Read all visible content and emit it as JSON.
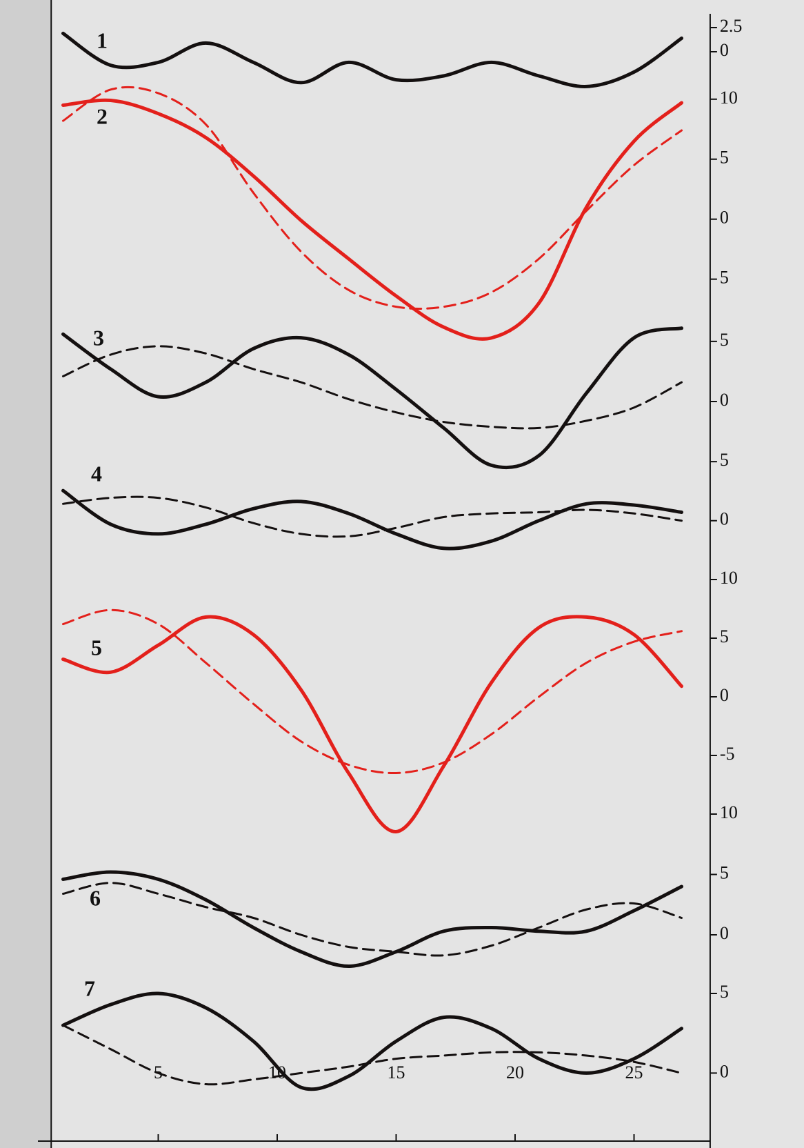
{
  "chart_data": [
    {
      "type": "line",
      "label": "1",
      "xlim": [
        0.5,
        28.2
      ],
      "ylim": [
        -4,
        3.5
      ],
      "yticks": [
        2.5,
        0
      ],
      "x": [
        1,
        3,
        5,
        7,
        9,
        11,
        13,
        15,
        17,
        19,
        21,
        23,
        25,
        27
      ],
      "series": [
        {
          "color": "#141010",
          "dashed": false,
          "values": [
            1.9,
            -1.4,
            -1.1,
            0.9,
            -1.1,
            -3.2,
            -1.1,
            -2.9,
            -2.5,
            -1.1,
            -2.5,
            -3.6,
            -2.1,
            1.4
          ]
        }
      ]
    },
    {
      "type": "line",
      "label": "2",
      "xlim": [
        0.5,
        28.2
      ],
      "ylim": [
        -11,
        12
      ],
      "yticks": [
        10,
        5,
        0,
        {
          "value": -5,
          "label": "5"
        }
      ],
      "x": [
        1,
        3,
        5,
        7,
        9,
        11,
        13,
        15,
        17,
        19,
        21,
        23,
        25,
        27
      ],
      "series": [
        {
          "color": "#e3201b",
          "dashed": false,
          "values": [
            9.5,
            9.9,
            8.8,
            6.8,
            3.6,
            -0.1,
            -3.3,
            -6.4,
            -9.0,
            -9.9,
            -7.0,
            1.0,
            6.5,
            9.7
          ]
        },
        {
          "color": "#e3201b",
          "dashed": true,
          "values": [
            8.2,
            10.8,
            10.5,
            7.9,
            2.2,
            -2.7,
            -5.9,
            -7.3,
            -7.3,
            -6.1,
            -3.3,
            0.7,
            4.5,
            7.4
          ]
        }
      ]
    },
    {
      "type": "line",
      "label": "3",
      "xlim": [
        0.5,
        28.2
      ],
      "ylim": [
        -7,
        7
      ],
      "yticks": [
        5,
        0,
        {
          "value": -5,
          "label": "5"
        }
      ],
      "x": [
        1,
        3,
        5,
        7,
        9,
        11,
        13,
        15,
        17,
        19,
        21,
        23,
        25,
        27
      ],
      "series": [
        {
          "color": "#141010",
          "dashed": false,
          "values": [
            5.6,
            2.7,
            0.4,
            1.6,
            4.4,
            5.3,
            3.9,
            1.0,
            -2.2,
            -5.3,
            -4.5,
            0.7,
            5.3,
            6.1
          ]
        },
        {
          "color": "#141010",
          "dashed": true,
          "values": [
            2.1,
            3.9,
            4.6,
            4.0,
            2.7,
            1.6,
            0.2,
            -0.9,
            -1.7,
            -2.1,
            -2.2,
            -1.6,
            -0.5,
            1.6
          ]
        }
      ]
    },
    {
      "type": "line",
      "label": "4",
      "xlim": [
        0.5,
        28.2
      ],
      "ylim": [
        -3,
        4
      ],
      "yticks": [
        0
      ],
      "x": [
        1,
        3,
        5,
        7,
        9,
        11,
        13,
        15,
        17,
        19,
        21,
        23,
        25,
        27
      ],
      "series": [
        {
          "color": "#141010",
          "dashed": false,
          "values": [
            2.5,
            -0.3,
            -1.1,
            -0.3,
            1.0,
            1.6,
            0.6,
            -1.1,
            -2.3,
            -1.7,
            0,
            1.4,
            1.3,
            0.7
          ]
        },
        {
          "color": "#141010",
          "dashed": true,
          "values": [
            1.4,
            1.9,
            1.9,
            1.1,
            -0.2,
            -1.1,
            -1.3,
            -0.6,
            0.3,
            0.6,
            0.7,
            0.9,
            0.6,
            0
          ]
        }
      ]
    },
    {
      "type": "line",
      "label": "5",
      "xlim": [
        0.5,
        28.2
      ],
      "ylim": [
        -12,
        8
      ],
      "yticks": [
        10,
        5,
        0,
        -5,
        {
          "value": -10,
          "label": "10"
        }
      ],
      "x": [
        1,
        3,
        5,
        7,
        9,
        11,
        13,
        15,
        17,
        19,
        21,
        23,
        25,
        27
      ],
      "series": [
        {
          "color": "#e3201b",
          "dashed": false,
          "values": [
            3.2,
            2.1,
            4.4,
            6.8,
            5.3,
            0.6,
            -6.5,
            -11.5,
            -5.9,
            1.2,
            5.9,
            6.8,
            5.3,
            0.9
          ]
        },
        {
          "color": "#e3201b",
          "dashed": true,
          "values": [
            6.2,
            7.4,
            6.2,
            2.9,
            -0.6,
            -3.8,
            -5.8,
            -6.5,
            -5.6,
            -3.2,
            0,
            2.9,
            4.7,
            5.6
          ]
        }
      ]
    },
    {
      "type": "line",
      "label": "6",
      "xlim": [
        0.5,
        28.2
      ],
      "ylim": [
        -4,
        6
      ],
      "yticks": [
        5,
        0
      ],
      "x": [
        1,
        3,
        5,
        7,
        9,
        11,
        13,
        15,
        17,
        19,
        21,
        23,
        25,
        27
      ],
      "series": [
        {
          "color": "#141010",
          "dashed": false,
          "values": [
            4.6,
            5.2,
            4.6,
            2.9,
            0.6,
            -1.4,
            -2.6,
            -1.4,
            0.3,
            0.6,
            0.3,
            0.3,
            2.0,
            4.0
          ]
        },
        {
          "color": "#141010",
          "dashed": true,
          "values": [
            3.4,
            4.3,
            3.4,
            2.3,
            1.4,
            0,
            -1.0,
            -1.4,
            -1.7,
            -0.9,
            0.6,
            2.1,
            2.6,
            1.4
          ]
        }
      ]
    },
    {
      "type": "line",
      "label": "7",
      "xlim": [
        0.5,
        28.2
      ],
      "ylim": [
        -1.5,
        5
      ],
      "yticks": [
        5,
        0
      ],
      "xticks": [
        5,
        10,
        15,
        20,
        25
      ],
      "x": [
        1,
        3,
        5,
        7,
        9,
        11,
        13,
        15,
        17,
        19,
        21,
        23,
        25,
        27
      ],
      "series": [
        {
          "color": "#141010",
          "dashed": false,
          "values": [
            3.0,
            4.3,
            5.0,
            4.1,
            2.0,
            -0.9,
            -0.2,
            2.0,
            3.5,
            2.8,
            0.9,
            0,
            0.9,
            2.8
          ]
        },
        {
          "color": "#141010",
          "dashed": true,
          "values": [
            3.0,
            1.5,
            0,
            -0.7,
            -0.4,
            0,
            0.4,
            0.9,
            1.1,
            1.3,
            1.3,
            1.1,
            0.7,
            0
          ]
        }
      ]
    }
  ]
}
